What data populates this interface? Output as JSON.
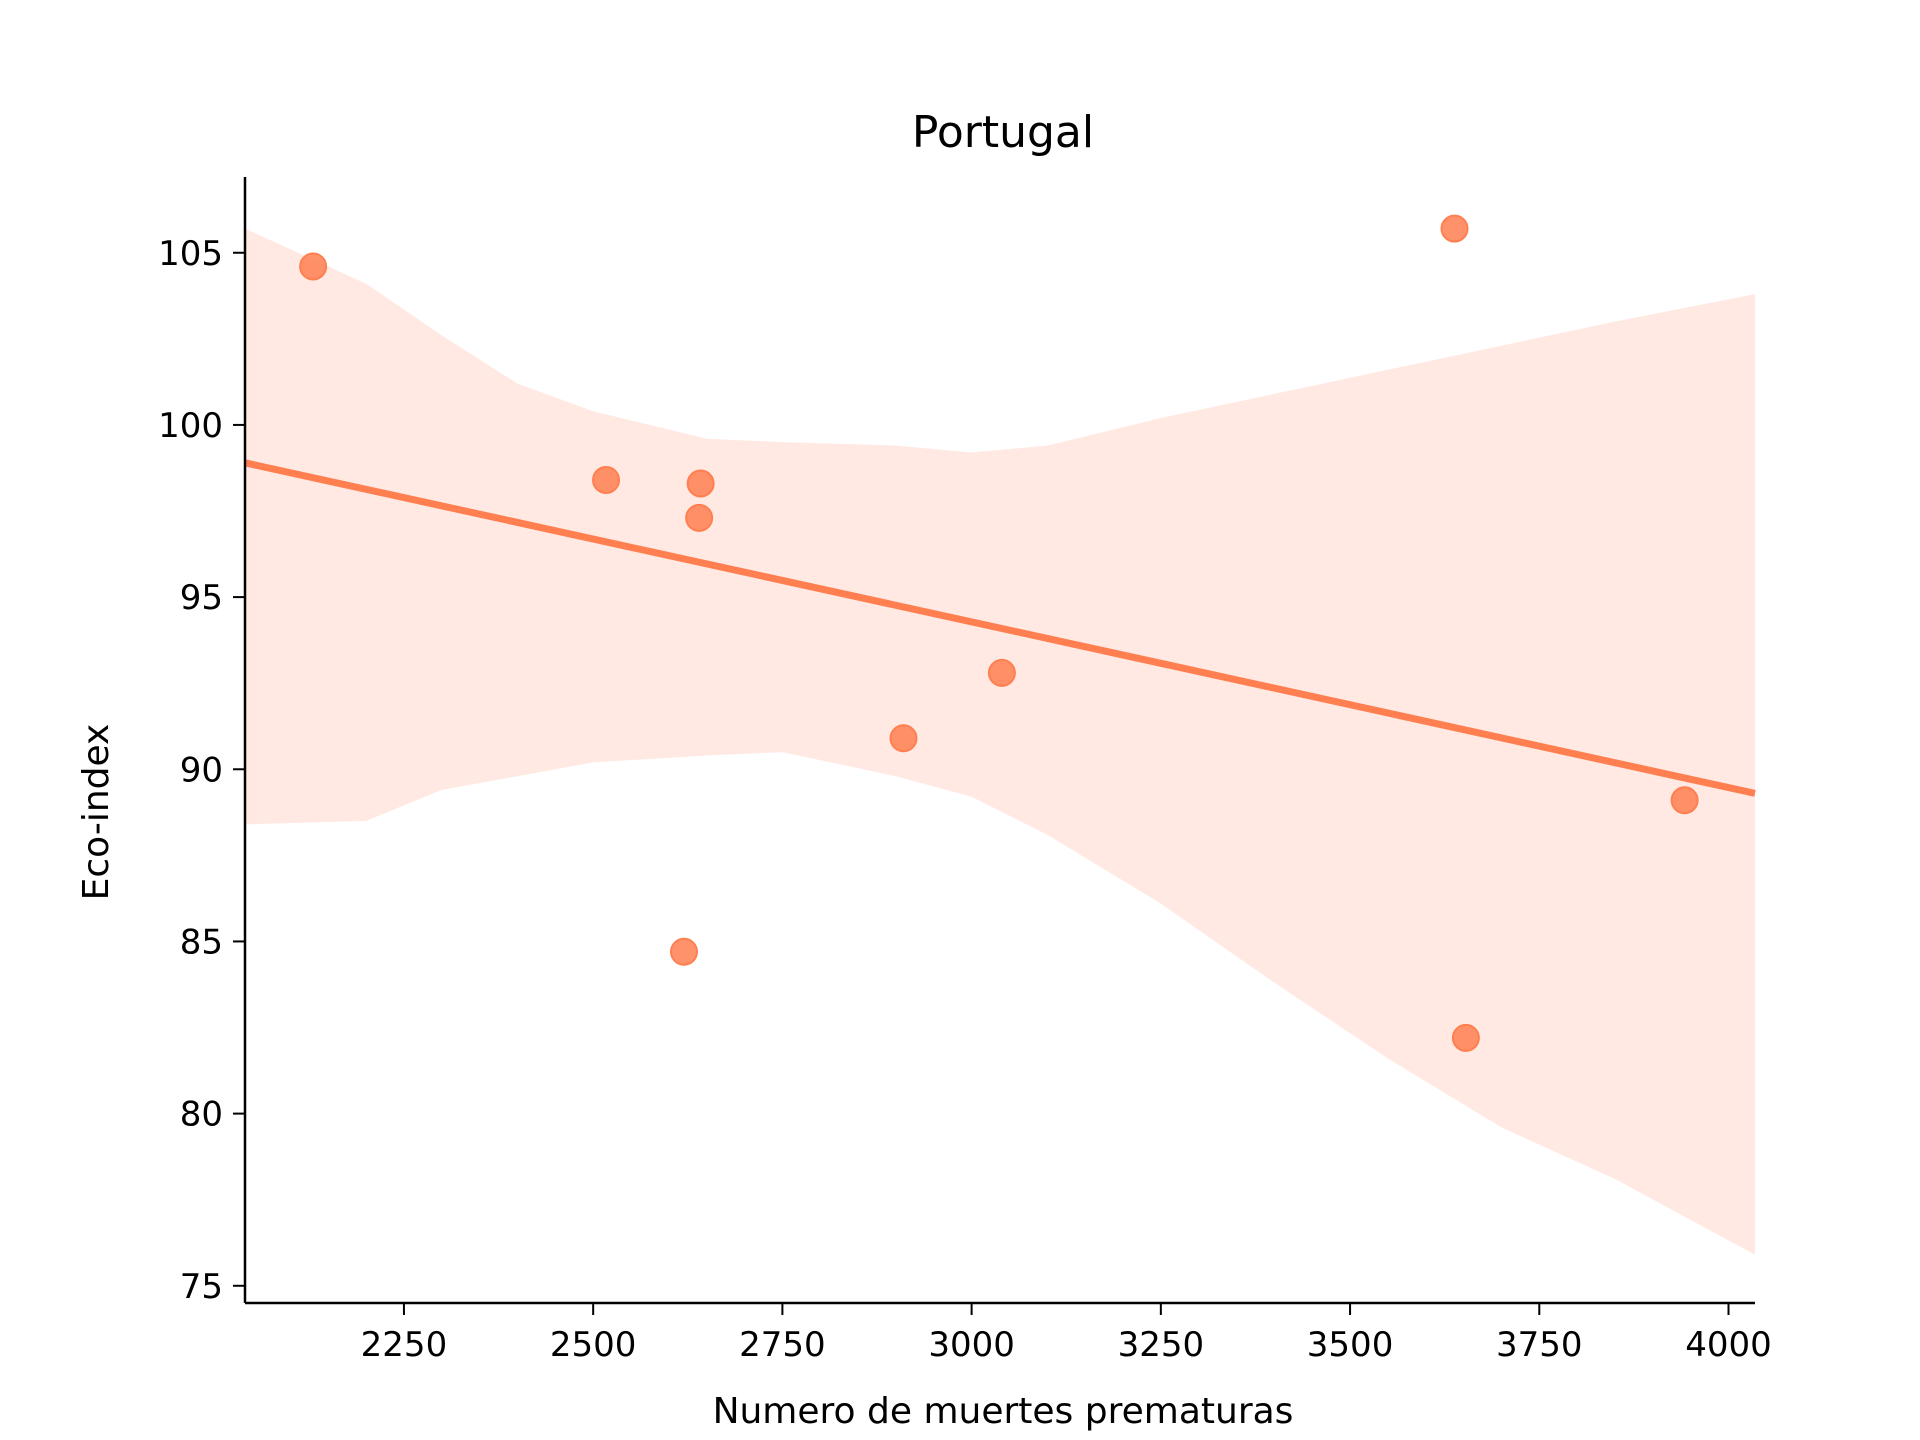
{
  "chart_data": {
    "type": "scatter",
    "title": "Portugal",
    "xlabel": "Numero de muertes prematuras",
    "ylabel": "Eco-index",
    "xlim": [
      2040,
      4035
    ],
    "ylim": [
      74.5,
      107.2
    ],
    "xticks": [
      2250,
      2500,
      2750,
      3000,
      3250,
      3500,
      3750,
      4000
    ],
    "yticks": [
      75,
      80,
      85,
      90,
      95,
      100,
      105
    ],
    "grid": false,
    "points": [
      {
        "x": 2130,
        "y": 104.6
      },
      {
        "x": 2517,
        "y": 98.4
      },
      {
        "x": 2642,
        "y": 98.3
      },
      {
        "x": 2640,
        "y": 97.3
      },
      {
        "x": 2620,
        "y": 84.7
      },
      {
        "x": 2910,
        "y": 90.9
      },
      {
        "x": 3040,
        "y": 92.8
      },
      {
        "x": 3638,
        "y": 105.7
      },
      {
        "x": 3653,
        "y": 82.2
      },
      {
        "x": 3942,
        "y": 89.1
      }
    ],
    "regression": {
      "x": [
        2040,
        4035
      ],
      "y": [
        98.9,
        89.3
      ]
    },
    "confidence_band": {
      "x": [
        2040,
        2200,
        2300,
        2400,
        2500,
        2650,
        2750,
        2900,
        3000,
        3100,
        3250,
        3400,
        3550,
        3700,
        3850,
        4035
      ],
      "upper": [
        105.7,
        104.1,
        102.6,
        101.2,
        100.4,
        99.6,
        99.5,
        99.4,
        99.2,
        99.4,
        100.2,
        100.9,
        101.6,
        102.3,
        103.0,
        103.8
      ],
      "lower": [
        88.4,
        88.5,
        89.4,
        89.8,
        90.2,
        90.4,
        90.5,
        89.8,
        89.2,
        88.1,
        86.1,
        83.8,
        81.6,
        79.6,
        78.1,
        75.9
      ]
    },
    "colors": {
      "points": "#ff7f50",
      "line": "#ff7f50",
      "band": "#ffe9e2",
      "axis": "#000000"
    }
  }
}
